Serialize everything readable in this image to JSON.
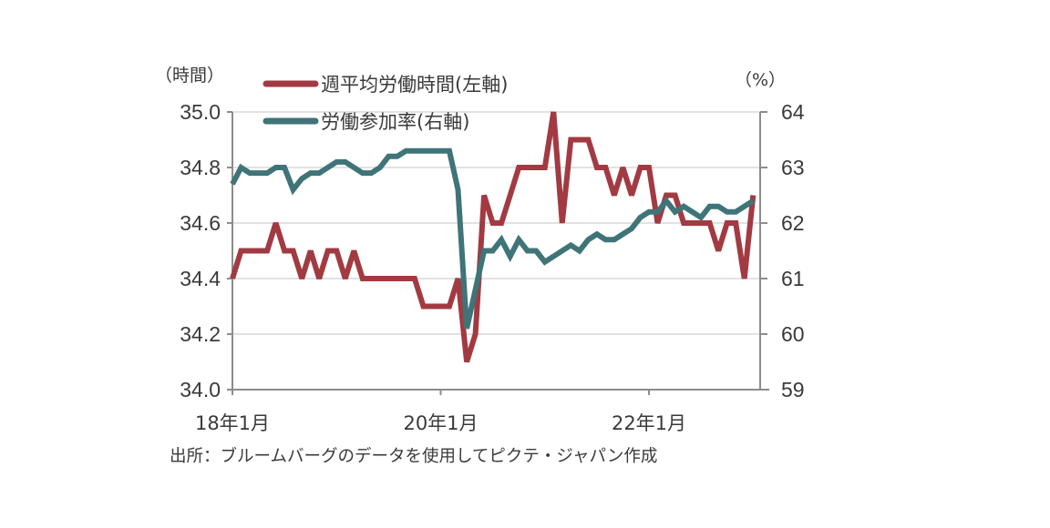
{
  "chart_data": {
    "type": "line",
    "title": "",
    "left_axis": {
      "label": "（時間）",
      "range": [
        34.0,
        35.0
      ],
      "ticks": [
        "34.0",
        "34.2",
        "34.4",
        "34.6",
        "34.8",
        "35.0"
      ],
      "tick_values": [
        34.0,
        34.2,
        34.4,
        34.6,
        34.8,
        35.0
      ]
    },
    "right_axis": {
      "label": "（%）",
      "range": [
        59,
        64
      ],
      "ticks": [
        "59",
        "60",
        "61",
        "62",
        "63",
        "64"
      ],
      "tick_values": [
        59,
        60,
        61,
        62,
        63,
        64
      ]
    },
    "x_axis": {
      "start": "2018-01",
      "end": "2023-01",
      "frequency": "monthly",
      "tick_labels": [
        "18年1月",
        "20年1月",
        "22年1月"
      ],
      "tick_indices": [
        0,
        24,
        48
      ]
    },
    "grid": true,
    "legend": {
      "placement": "top-left"
    },
    "series": [
      {
        "name": "週平均労働時間(左軸)",
        "axis": "left",
        "color": "#a23a42",
        "values": [
          34.4,
          34.5,
          34.5,
          34.5,
          34.5,
          34.6,
          34.5,
          34.5,
          34.4,
          34.5,
          34.4,
          34.5,
          34.5,
          34.4,
          34.5,
          34.4,
          34.4,
          34.4,
          34.4,
          34.4,
          34.4,
          34.4,
          34.3,
          34.3,
          34.3,
          34.3,
          34.4,
          34.1,
          34.2,
          34.7,
          34.6,
          34.6,
          34.7,
          34.8,
          34.8,
          34.8,
          34.8,
          35.0,
          34.6,
          34.9,
          34.9,
          34.9,
          34.8,
          34.8,
          34.7,
          34.8,
          34.7,
          34.8,
          34.8,
          34.6,
          34.7,
          34.7,
          34.6,
          34.6,
          34.6,
          34.6,
          34.5,
          34.6,
          34.6,
          34.4,
          34.7
        ]
      },
      {
        "name": "労働参加率(右軸)",
        "axis": "right",
        "color": "#3f7479",
        "values": [
          62.7,
          63.0,
          62.9,
          62.9,
          62.9,
          63.0,
          63.0,
          62.6,
          62.8,
          62.9,
          62.9,
          63.0,
          63.1,
          63.1,
          63.0,
          62.9,
          62.9,
          63.0,
          63.2,
          63.2,
          63.3,
          63.3,
          63.3,
          63.3,
          63.3,
          63.3,
          62.6,
          60.1,
          60.8,
          61.5,
          61.5,
          61.7,
          61.4,
          61.7,
          61.5,
          61.5,
          61.3,
          61.4,
          61.5,
          61.6,
          61.5,
          61.7,
          61.8,
          61.7,
          61.7,
          61.8,
          61.9,
          62.1,
          62.2,
          62.2,
          62.4,
          62.2,
          62.3,
          62.2,
          62.1,
          62.3,
          62.3,
          62.2,
          62.2,
          62.3,
          62.4
        ]
      }
    ],
    "source": "出所：ブルームバーグのデータを使用してピクテ・ジャパン作成"
  }
}
